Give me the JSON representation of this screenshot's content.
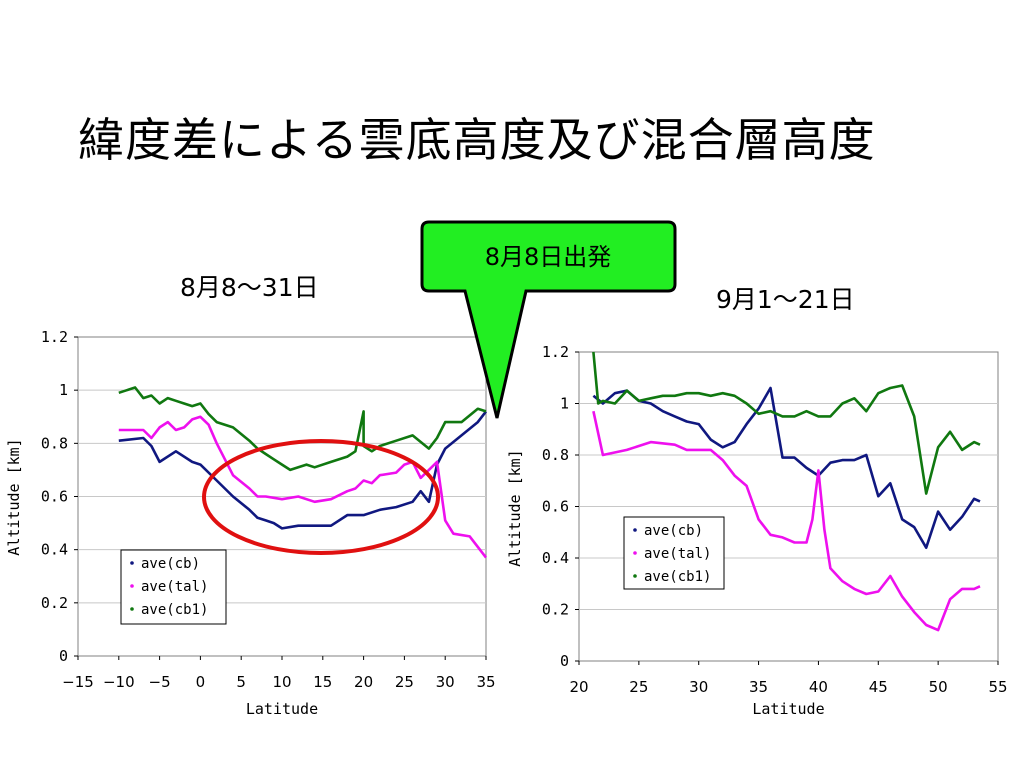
{
  "slide": {
    "title": "緯度差による雲底高度及び混合層高度",
    "callout_text": "8月8日出発",
    "callout_color": "#22ee22",
    "highlight_color": "#e01010"
  },
  "chart_data": [
    {
      "type": "line",
      "title": "8月8〜31日",
      "xlabel": "Latitude",
      "ylabel": "Altitude [km]",
      "xlim": [
        -15,
        35
      ],
      "ylim": [
        0,
        1.2
      ],
      "x_ticks": [
        -15,
        -10,
        -5,
        0,
        5,
        10,
        15,
        20,
        25,
        30,
        35
      ],
      "y_ticks": [
        0,
        0.2,
        0.4,
        0.6,
        0.8,
        1,
        1.2
      ],
      "x_tick_labels": [
        "−15",
        "−10",
        "−5",
        "0",
        "5",
        "10",
        "15",
        "20",
        "25",
        "30",
        "35"
      ],
      "y_tick_labels": [
        "0",
        "0.2",
        "0.4",
        "0.6",
        "0.8",
        "1",
        "1.2"
      ],
      "grid": "horizontal",
      "legend_position": "lower-left",
      "series": [
        {
          "name": "ave(cb)",
          "color": "#101880",
          "x": [
            -10,
            -7,
            -6,
            -5,
            -3,
            -1,
            0,
            2,
            4,
            6,
            7,
            8,
            9,
            10,
            12,
            14,
            16,
            18,
            20,
            22,
            24,
            26,
            27,
            28,
            29,
            30,
            32,
            34,
            35
          ],
          "y": [
            0.81,
            0.82,
            0.79,
            0.73,
            0.77,
            0.73,
            0.72,
            0.66,
            0.6,
            0.55,
            0.52,
            0.51,
            0.5,
            0.48,
            0.49,
            0.49,
            0.49,
            0.53,
            0.53,
            0.55,
            0.56,
            0.58,
            0.62,
            0.58,
            0.72,
            0.78,
            0.83,
            0.88,
            0.92
          ]
        },
        {
          "name": "ave(tal)",
          "color": "#ee10ee",
          "x": [
            -10,
            -7,
            -6,
            -5,
            -4,
            -3,
            -2,
            -1,
            0,
            1,
            2,
            3,
            4,
            6,
            7,
            8,
            10,
            12,
            14,
            16,
            18,
            19,
            20,
            21,
            22,
            24,
            25,
            26,
            27,
            28,
            29,
            30,
            31,
            33,
            35
          ],
          "y": [
            0.85,
            0.85,
            0.82,
            0.86,
            0.88,
            0.85,
            0.86,
            0.89,
            0.9,
            0.87,
            0.8,
            0.74,
            0.68,
            0.63,
            0.6,
            0.6,
            0.59,
            0.6,
            0.58,
            0.59,
            0.62,
            0.63,
            0.66,
            0.65,
            0.68,
            0.69,
            0.72,
            0.73,
            0.67,
            0.7,
            0.73,
            0.51,
            0.46,
            0.45,
            0.37
          ]
        },
        {
          "name": "ave(cb1)",
          "color": "#107810",
          "x": [
            -10,
            -8,
            -7,
            -6,
            -5,
            -4,
            -3,
            -2,
            -1,
            0,
            1,
            2,
            4,
            6,
            7,
            8,
            9,
            10,
            11,
            12,
            13,
            14,
            16,
            18,
            19,
            20,
            20,
            21,
            22,
            24,
            26,
            28,
            29,
            30,
            32,
            34,
            35
          ],
          "y": [
            0.99,
            1.01,
            0.97,
            0.98,
            0.95,
            0.97,
            0.96,
            0.95,
            0.94,
            0.95,
            0.91,
            0.88,
            0.86,
            0.81,
            0.78,
            0.76,
            0.74,
            0.72,
            0.7,
            0.71,
            0.72,
            0.71,
            0.73,
            0.75,
            0.77,
            0.92,
            0.79,
            0.77,
            0.79,
            0.81,
            0.83,
            0.78,
            0.82,
            0.88,
            0.88,
            0.93,
            0.92
          ]
        }
      ]
    },
    {
      "type": "line",
      "title": "9月1〜21日",
      "xlabel": "Latitude",
      "ylabel": "Altitude [km]",
      "xlim": [
        20,
        55
      ],
      "ylim": [
        0,
        1.2
      ],
      "x_ticks": [
        20,
        25,
        30,
        35,
        40,
        45,
        50,
        55
      ],
      "y_ticks": [
        0,
        0.2,
        0.4,
        0.6,
        0.8,
        1,
        1.2
      ],
      "x_tick_labels": [
        "20",
        "25",
        "30",
        "35",
        "40",
        "45",
        "50",
        "55"
      ],
      "y_tick_labels": [
        "0",
        "0.2",
        "0.4",
        "0.6",
        "0.8",
        "1",
        "1.2"
      ],
      "grid": "horizontal",
      "legend_position": "middle-right",
      "series": [
        {
          "name": "ave(cb)",
          "color": "#101880",
          "x": [
            21.2,
            22,
            23,
            24,
            25,
            26,
            27,
            28,
            29,
            30,
            31,
            32,
            33,
            34,
            35,
            36,
            37,
            38,
            39,
            40,
            41,
            42,
            43,
            44,
            45,
            46,
            47,
            48,
            49,
            50,
            51,
            52,
            53,
            53.5
          ],
          "y": [
            1.03,
            1.0,
            1.04,
            1.05,
            1.01,
            1.0,
            0.97,
            0.95,
            0.93,
            0.92,
            0.86,
            0.83,
            0.85,
            0.92,
            0.98,
            1.06,
            0.79,
            0.79,
            0.75,
            0.72,
            0.77,
            0.78,
            0.78,
            0.8,
            0.64,
            0.69,
            0.55,
            0.52,
            0.44,
            0.58,
            0.51,
            0.56,
            0.63,
            0.62
          ]
        },
        {
          "name": "ave(tal)",
          "color": "#ee10ee",
          "x": [
            21.2,
            22,
            24,
            26,
            28,
            29,
            30,
            31,
            32,
            33,
            34,
            35,
            36,
            37,
            38,
            39,
            39.5,
            40,
            40.5,
            41,
            42,
            43,
            44,
            45,
            46,
            47,
            48,
            49,
            50,
            51,
            52,
            53,
            53.5
          ],
          "y": [
            0.97,
            0.8,
            0.82,
            0.85,
            0.84,
            0.82,
            0.82,
            0.82,
            0.78,
            0.72,
            0.68,
            0.55,
            0.49,
            0.48,
            0.46,
            0.46,
            0.55,
            0.74,
            0.51,
            0.36,
            0.31,
            0.28,
            0.26,
            0.27,
            0.33,
            0.25,
            0.19,
            0.14,
            0.12,
            0.24,
            0.28,
            0.28,
            0.29
          ]
        },
        {
          "name": "ave(cb1)",
          "color": "#107810",
          "x": [
            21.2,
            21.6,
            22,
            23,
            24,
            25,
            26,
            27,
            28,
            29,
            30,
            31,
            32,
            33,
            34,
            35,
            36,
            37,
            38,
            39,
            40,
            41,
            42,
            43,
            44,
            45,
            46,
            47,
            48,
            49,
            50,
            51,
            52,
            53,
            53.5
          ],
          "y": [
            1.2,
            1.0,
            1.01,
            1.0,
            1.05,
            1.01,
            1.02,
            1.03,
            1.03,
            1.04,
            1.04,
            1.03,
            1.04,
            1.03,
            1.0,
            0.96,
            0.97,
            0.95,
            0.95,
            0.97,
            0.95,
            0.95,
            1.0,
            1.02,
            0.97,
            1.04,
            1.06,
            1.07,
            0.95,
            0.65,
            0.83,
            0.89,
            0.82,
            0.85,
            0.84
          ]
        }
      ]
    }
  ]
}
